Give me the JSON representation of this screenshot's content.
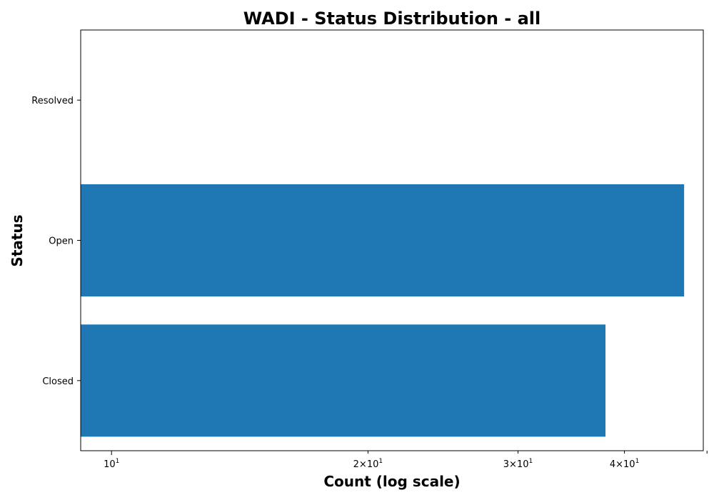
{
  "chart_data": {
    "type": "bar",
    "orientation": "horizontal",
    "title": "WADI - Status Distribution - all",
    "xlabel": "Count (log scale)",
    "ylabel": "Status",
    "x_scale": "log",
    "xlim": [
      9.2,
      49.5
    ],
    "categories": [
      "Closed",
      "Open",
      "Resolved"
    ],
    "values": [
      38,
      47,
      9
    ],
    "bar_color": "#1f77b4",
    "grid": false,
    "legend": "none",
    "x_major_ticks": [
      {
        "value": 10,
        "base": "10",
        "exp": "1"
      }
    ],
    "x_minor_ticks": [
      {
        "value": 20,
        "coef": "2",
        "base": "10",
        "exp": "1"
      },
      {
        "value": 30,
        "coef": "3",
        "base": "10",
        "exp": "1"
      },
      {
        "value": 40,
        "coef": "4",
        "base": "10",
        "exp": "1"
      }
    ],
    "x_unlabeled_minor_ticks": [
      50
    ]
  }
}
